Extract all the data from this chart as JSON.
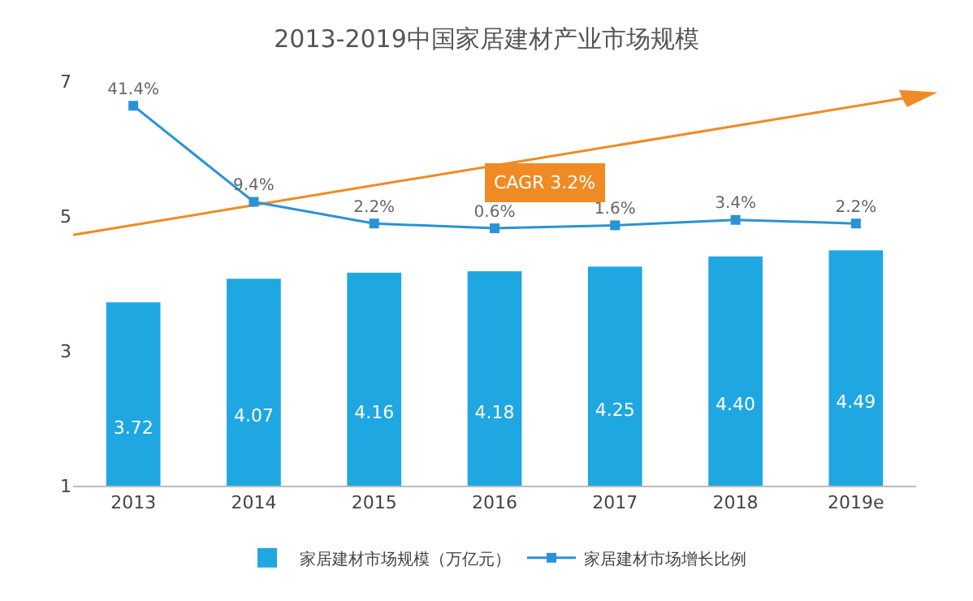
{
  "chart_data": {
    "type": "bar",
    "title": "2013-2019中国家居建材产业市场规模",
    "categories": [
      "2013",
      "2014",
      "2015",
      "2016",
      "2017",
      "2018",
      "2019e"
    ],
    "series": [
      {
        "name": "家居建材市场规模（万亿元）",
        "color": "#1fa7e1",
        "values": [
          3.72,
          4.07,
          4.16,
          4.18,
          4.25,
          4.4,
          4.49
        ],
        "value_labels": [
          "3.72",
          "4.07",
          "4.16",
          "4.18",
          "4.25",
          "4.40",
          "4.49"
        ]
      },
      {
        "name": "家居建材市场增长比例",
        "type": "line",
        "axis": "y2",
        "color": "#2a93d5",
        "marker": "square",
        "values": [
          41.4,
          9.4,
          2.2,
          0.6,
          1.6,
          3.4,
          2.2
        ],
        "value_labels": [
          "41.4%",
          "9.4%",
          "2.2%",
          "0.6%",
          "1.6%",
          "3.4%",
          "2.2%"
        ]
      }
    ],
    "ylim": [
      1,
      7
    ],
    "yticks": [
      1,
      3,
      5,
      7
    ],
    "legend": "bottom",
    "grid": false,
    "annotations": [
      "CAGR 3.2%"
    ]
  }
}
